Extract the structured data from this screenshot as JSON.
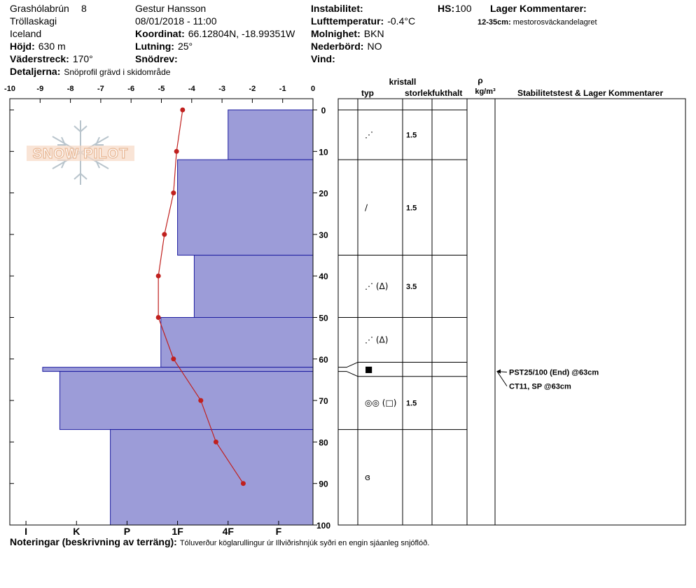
{
  "header": {
    "location": [
      "Grashólabrún",
      "Tröllaskagi",
      "Iceland"
    ],
    "pit_number": "8",
    "observer": "Gestur Hansson",
    "datetime": "08/01/2018 - 11:00",
    "fields": [
      {
        "label": "Höjd:",
        "value": "630 m"
      },
      {
        "label": "Väderstreck:",
        "value": "170°"
      },
      {
        "label": "Detaljerna:",
        "value": "Snöprofil grävd i skidområde"
      },
      {
        "label": "Koordinat:",
        "value": "66.12804N, -18.99351W"
      },
      {
        "label": "Lutning:",
        "value": "25°"
      },
      {
        "label": "Snödrev:"
      },
      {
        "label": "Instabilitet:"
      },
      {
        "label": "Lufttemperatur:",
        "value": "-0.4°C"
      },
      {
        "label": "Molnighet:",
        "value": "BKN"
      },
      {
        "label": "Nederbörd:",
        "value": "NO"
      },
      {
        "label": "Vind:"
      },
      {
        "label": "HS:",
        "value": "100"
      }
    ],
    "layer_comments_title": "Lager Kommentarer:",
    "layer_comments": [
      {
        "range": "12-35cm:",
        "text": "mestorosväckandelagret"
      }
    ]
  },
  "chart_data": {
    "type": "snow-profile",
    "logo": "SNOW PILOT",
    "temperature_lim": [
      -10,
      0
    ],
    "temperature_ticks": [
      -10,
      -9,
      -8,
      -7,
      -6,
      -5,
      -4,
      -3,
      -2,
      -1,
      0
    ],
    "depth_lim": [
      0,
      100
    ],
    "depth_ticks": [
      0,
      10,
      20,
      30,
      40,
      50,
      60,
      70,
      80,
      90,
      100
    ],
    "hardness_lim": [
      0.32,
      6.32
    ],
    "hardness_ticks": [
      {
        "value": 6,
        "label": "I"
      },
      {
        "value": 5,
        "label": "K"
      },
      {
        "value": 4,
        "label": "P"
      },
      {
        "value": 3,
        "label": "1F"
      },
      {
        "value": 2,
        "label": "4F"
      },
      {
        "value": 1,
        "label": "F"
      }
    ],
    "hardness_color": "#9c9cd8",
    "temperature_color": "#c0201e",
    "layers": [
      {
        "top": 0,
        "bottom": 12,
        "hardness": 2,
        "grain": "⋰",
        "size": 1.5
      },
      {
        "top": 12,
        "bottom": 35,
        "hardness": 3,
        "grain": "∕",
        "size": 1.5
      },
      {
        "top": 35,
        "bottom": 50,
        "hardness": 2.67,
        "grain": "⋰ (Δ)",
        "size": 3.5
      },
      {
        "top": 50,
        "bottom": 62,
        "hardness": 3.33,
        "grain": "⋰ (Δ)"
      },
      {
        "top": 62,
        "bottom": 63,
        "hardness": 5.67,
        "grain": "■"
      },
      {
        "top": 63,
        "bottom": 77,
        "hardness": 5.33,
        "grain": "◎◎ (□)",
        "size": 1.5
      },
      {
        "top": 77,
        "bottom": 100,
        "hardness": 4.33,
        "grain": "ɞ"
      }
    ],
    "temperature_profile": {
      "depth": [
        0,
        10,
        20,
        30,
        40,
        50,
        60,
        70,
        80,
        90
      ],
      "temperature": [
        -4.3,
        -4.5,
        -4.6,
        -4.9,
        -5.1,
        -5.1,
        -4.6,
        -3.7,
        -3.2,
        -2.3
      ]
    },
    "table_headers": {
      "crystal": "kristall",
      "type": "typ",
      "size": "storlek",
      "moisture": "fukthalt",
      "density": "ρ",
      "density_unit": "kg/m³",
      "comments": "Stabilitetstest & Lager Kommentarer"
    },
    "stability_tests": [
      {
        "text": "PST25/100 (End) @63cm",
        "depth": 63
      },
      {
        "text": "CT11, SP @63cm",
        "depth": 63
      }
    ]
  },
  "notes": {
    "label": "Noteringar (beskrivning av terräng):",
    "text": "Tóluverður köglarullingur úr Illviðrishnjúk syðri en engin sjáanleg snjóflóð."
  }
}
